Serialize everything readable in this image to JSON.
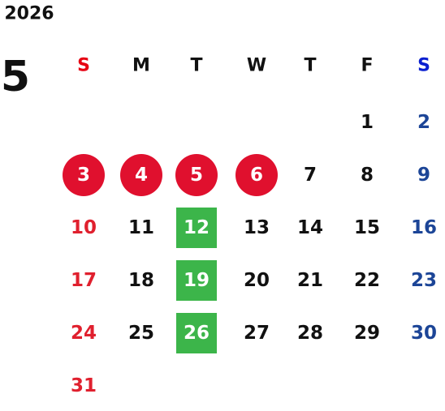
{
  "year": "2026",
  "month": "5",
  "weekdays": [
    {
      "label": "S",
      "color": "#e60012",
      "day_color": "#e0202e"
    },
    {
      "label": "M",
      "color": "#111111",
      "day_color": "#111111"
    },
    {
      "label": "T",
      "color": "#111111",
      "day_color": "#111111"
    },
    {
      "label": "W",
      "color": "#111111",
      "day_color": "#111111"
    },
    {
      "label": "T",
      "color": "#111111",
      "day_color": "#111111"
    },
    {
      "label": "F",
      "color": "#111111",
      "day_color": "#111111"
    },
    {
      "label": "S",
      "color": "#0a1fd0",
      "day_color": "#1c4597"
    }
  ],
  "weeks": [
    [
      null,
      null,
      null,
      null,
      null,
      {
        "text": "1"
      },
      {
        "text": "2"
      }
    ],
    [
      {
        "text": "3",
        "mark": "circle",
        "mark_color": "#e0102e"
      },
      {
        "text": "4",
        "mark": "circle",
        "mark_color": "#e0102e"
      },
      {
        "text": "5",
        "mark": "circle",
        "mark_color": "#e0102e"
      },
      {
        "text": "6",
        "mark": "circle",
        "mark_color": "#e0102e"
      },
      {
        "text": "7"
      },
      {
        "text": "8"
      },
      {
        "text": "9"
      }
    ],
    [
      {
        "text": "10"
      },
      {
        "text": "11"
      },
      {
        "text": "12",
        "mark": "square",
        "mark_color": "#3cb54a"
      },
      {
        "text": "13"
      },
      {
        "text": "14"
      },
      {
        "text": "15"
      },
      {
        "text": "16"
      }
    ],
    [
      {
        "text": "17"
      },
      {
        "text": "18"
      },
      {
        "text": "19",
        "mark": "square",
        "mark_color": "#3cb54a"
      },
      {
        "text": "20"
      },
      {
        "text": "21"
      },
      {
        "text": "22"
      },
      {
        "text": "23"
      }
    ],
    [
      {
        "text": "24"
      },
      {
        "text": "25"
      },
      {
        "text": "26",
        "mark": "square",
        "mark_color": "#3cb54a"
      },
      {
        "text": "27"
      },
      {
        "text": "28"
      },
      {
        "text": "29"
      },
      {
        "text": "30"
      }
    ],
    [
      {
        "text": "31"
      },
      null,
      null,
      null,
      null,
      null,
      null
    ]
  ]
}
